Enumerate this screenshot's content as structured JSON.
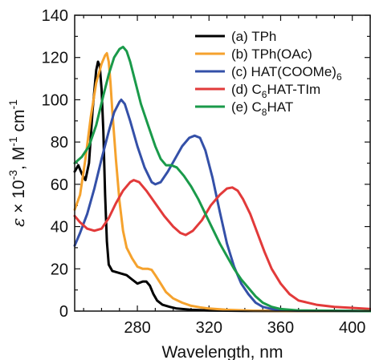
{
  "chart_data": {
    "type": "line",
    "xlabel": "Wavelength, nm",
    "ylabel_parts": [
      "ε",
      " × 10",
      "-3",
      ", M",
      "-1",
      " cm",
      "-1"
    ],
    "xlim": [
      245,
      410
    ],
    "ylim": [
      0,
      140
    ],
    "xticks": [
      280,
      320,
      360,
      400
    ],
    "yticks": [
      0,
      20,
      40,
      60,
      80,
      100,
      120,
      140
    ],
    "legend_position": "top-right",
    "series": [
      {
        "legend": {
          "prefix": "(a) TPh",
          "sub": "",
          "suffix": ""
        },
        "color": "#000000",
        "points": [
          [
            245,
            66
          ],
          [
            247,
            69
          ],
          [
            249,
            65
          ],
          [
            251,
            62
          ],
          [
            253,
            70
          ],
          [
            255,
            95
          ],
          [
            257,
            114
          ],
          [
            258,
            118
          ],
          [
            259,
            116
          ],
          [
            260,
            105
          ],
          [
            261,
            85
          ],
          [
            262,
            55
          ],
          [
            263,
            33
          ],
          [
            264,
            22
          ],
          [
            266,
            19
          ],
          [
            270,
            18
          ],
          [
            274,
            17
          ],
          [
            277,
            15
          ],
          [
            280,
            13
          ],
          [
            283,
            14
          ],
          [
            285,
            14
          ],
          [
            287,
            12
          ],
          [
            289,
            8
          ],
          [
            291,
            5
          ],
          [
            294,
            3
          ],
          [
            298,
            2
          ],
          [
            302,
            1.2
          ],
          [
            310,
            0.6
          ],
          [
            320,
            0.3
          ],
          [
            340,
            0.1
          ],
          [
            360,
            0.05
          ],
          [
            410,
            0
          ]
        ]
      },
      {
        "legend": {
          "prefix": "(b) TPh(OAc)",
          "sub": "",
          "suffix": ""
        },
        "color": "#f5a22d",
        "points": [
          [
            245,
            48
          ],
          [
            248,
            55
          ],
          [
            251,
            72
          ],
          [
            254,
            92
          ],
          [
            257,
            108
          ],
          [
            260,
            117
          ],
          [
            262,
            121
          ],
          [
            263,
            122
          ],
          [
            264,
            118
          ],
          [
            265,
            108
          ],
          [
            266,
            95
          ],
          [
            268,
            72
          ],
          [
            270,
            52
          ],
          [
            272,
            38
          ],
          [
            274,
            30
          ],
          [
            277,
            25
          ],
          [
            280,
            21
          ],
          [
            283,
            20
          ],
          [
            286,
            20
          ],
          [
            288,
            19.5
          ],
          [
            290,
            17
          ],
          [
            293,
            13
          ],
          [
            296,
            9
          ],
          [
            300,
            6
          ],
          [
            305,
            4
          ],
          [
            310,
            2.5
          ],
          [
            315,
            1.8
          ],
          [
            320,
            1.2
          ],
          [
            330,
            0.6
          ],
          [
            345,
            0.2
          ],
          [
            360,
            0.1
          ],
          [
            410,
            0
          ]
        ]
      },
      {
        "legend": {
          "prefix": "(c) HAT(COOMe)",
          "sub": "6",
          "suffix": ""
        },
        "color": "#3450a8",
        "points": [
          [
            245,
            31
          ],
          [
            248,
            37
          ],
          [
            252,
            46
          ],
          [
            256,
            58
          ],
          [
            260,
            72
          ],
          [
            264,
            85
          ],
          [
            267,
            94
          ],
          [
            270,
            99
          ],
          [
            271,
            100
          ],
          [
            273,
            98
          ],
          [
            276,
            90
          ],
          [
            280,
            78
          ],
          [
            284,
            68
          ],
          [
            288,
            61
          ],
          [
            290,
            60
          ],
          [
            293,
            61
          ],
          [
            297,
            66
          ],
          [
            301,
            72
          ],
          [
            305,
            78
          ],
          [
            309,
            82
          ],
          [
            312,
            83
          ],
          [
            315,
            82
          ],
          [
            318,
            76
          ],
          [
            322,
            63
          ],
          [
            326,
            47
          ],
          [
            330,
            32
          ],
          [
            334,
            21
          ],
          [
            338,
            13
          ],
          [
            342,
            8
          ],
          [
            346,
            4
          ],
          [
            350,
            2
          ],
          [
            355,
            1
          ],
          [
            360,
            0.5
          ],
          [
            370,
            0.2
          ],
          [
            410,
            0
          ]
        ]
      },
      {
        "legend": {
          "prefix": "(d) C",
          "sub": "6",
          "suffix": "HAT-TIm"
        },
        "color": "#e23a3a",
        "points": [
          [
            245,
            45
          ],
          [
            248,
            42
          ],
          [
            252,
            39
          ],
          [
            256,
            38
          ],
          [
            260,
            39
          ],
          [
            264,
            44
          ],
          [
            268,
            51
          ],
          [
            272,
            57
          ],
          [
            276,
            61
          ],
          [
            278,
            62
          ],
          [
            281,
            61
          ],
          [
            285,
            57
          ],
          [
            290,
            51
          ],
          [
            295,
            45
          ],
          [
            300,
            40
          ],
          [
            304,
            37
          ],
          [
            307,
            36
          ],
          [
            311,
            38
          ],
          [
            316,
            43
          ],
          [
            321,
            50
          ],
          [
            326,
            55
          ],
          [
            330,
            58
          ],
          [
            333,
            58.5
          ],
          [
            336,
            57
          ],
          [
            339,
            53
          ],
          [
            343,
            46
          ],
          [
            347,
            37
          ],
          [
            351,
            28
          ],
          [
            355,
            20
          ],
          [
            360,
            13
          ],
          [
            365,
            8
          ],
          [
            370,
            5
          ],
          [
            380,
            3
          ],
          [
            390,
            2
          ],
          [
            400,
            1.5
          ],
          [
            410,
            1
          ]
        ]
      },
      {
        "legend": {
          "prefix": "(e) C",
          "sub": "8",
          "suffix": "HAT"
        },
        "color": "#1a9a4a",
        "points": [
          [
            245,
            70
          ],
          [
            249,
            73
          ],
          [
            253,
            78
          ],
          [
            257,
            88
          ],
          [
            261,
            102
          ],
          [
            264,
            112
          ],
          [
            267,
            120
          ],
          [
            270,
            124
          ],
          [
            272,
            125
          ],
          [
            274,
            123
          ],
          [
            276,
            118
          ],
          [
            279,
            108
          ],
          [
            282,
            98
          ],
          [
            286,
            88
          ],
          [
            290,
            78
          ],
          [
            293,
            72
          ],
          [
            296,
            69
          ],
          [
            299,
            69
          ],
          [
            302,
            68
          ],
          [
            306,
            64
          ],
          [
            310,
            59
          ],
          [
            314,
            53
          ],
          [
            318,
            46
          ],
          [
            322,
            39
          ],
          [
            326,
            32
          ],
          [
            330,
            26
          ],
          [
            334,
            20
          ],
          [
            338,
            15
          ],
          [
            342,
            11
          ],
          [
            346,
            7
          ],
          [
            350,
            4
          ],
          [
            355,
            2
          ],
          [
            360,
            1
          ],
          [
            370,
            0.3
          ],
          [
            410,
            0
          ]
        ]
      }
    ]
  }
}
